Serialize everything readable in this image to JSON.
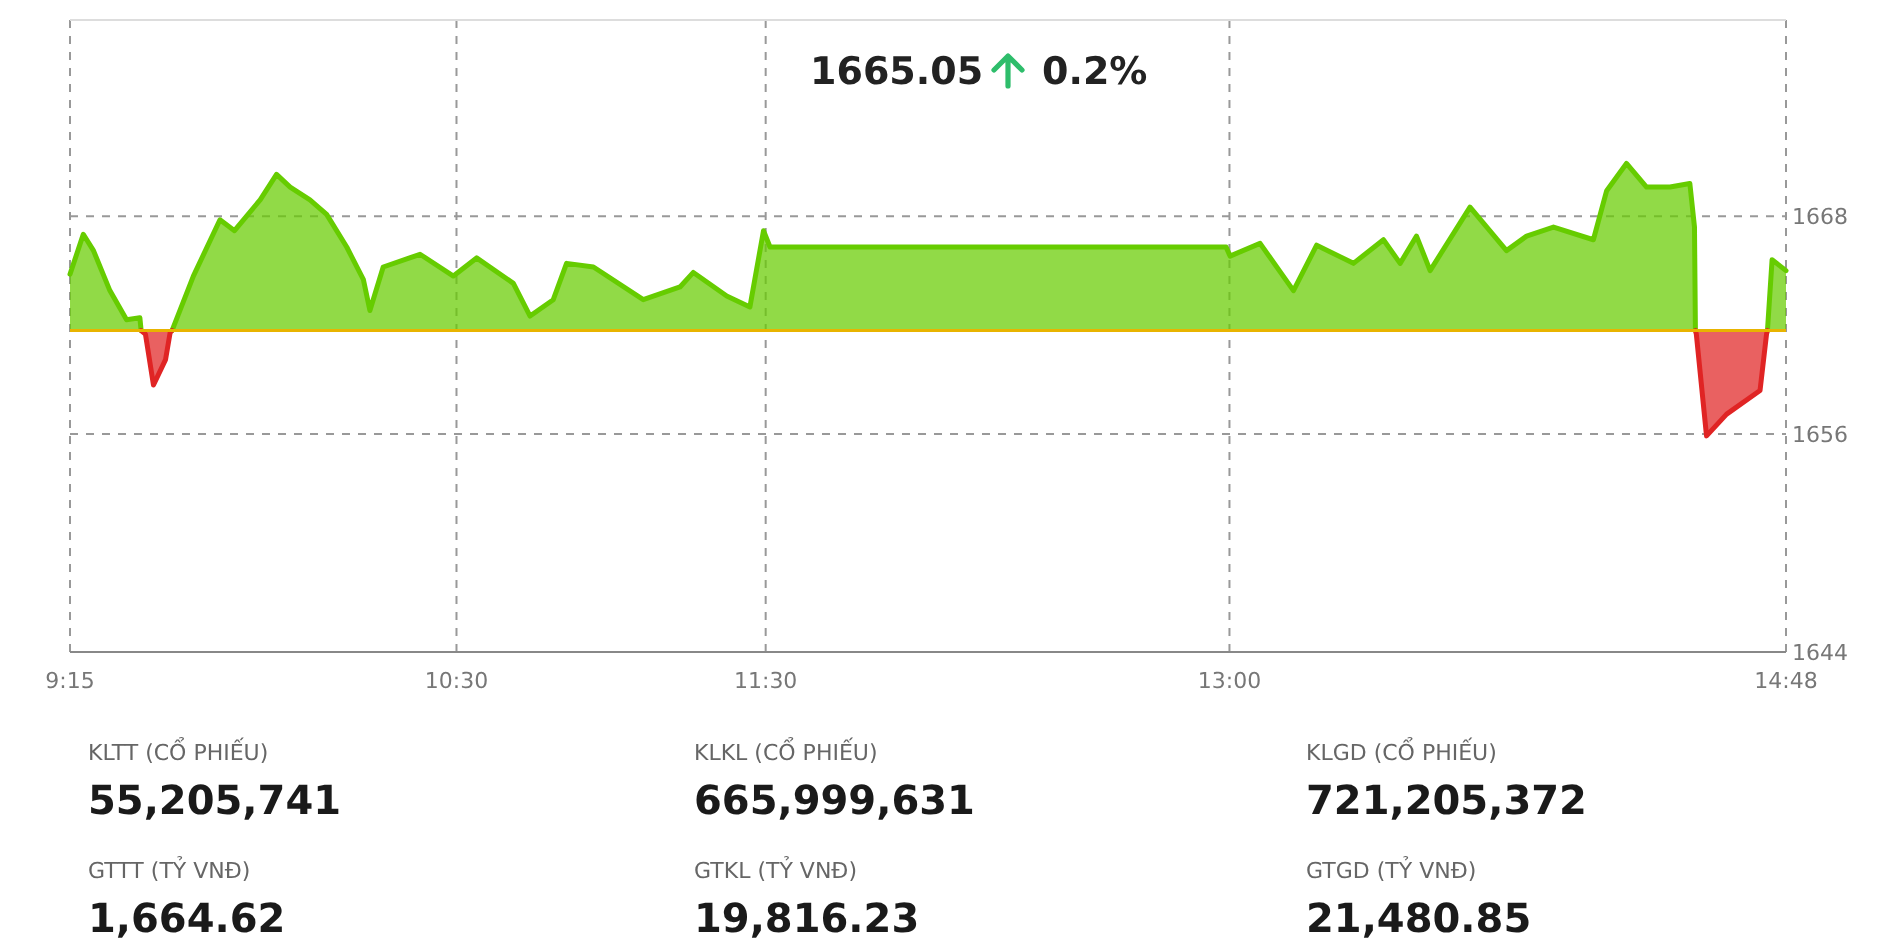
{
  "chart_data": {
    "type": "area",
    "xlim": [
      9.25,
      14.8
    ],
    "ylim": [
      1644,
      1678.8
    ],
    "xticks": [
      {
        "value": 9.25,
        "label": "9:15"
      },
      {
        "value": 10.5,
        "label": "10:30"
      },
      {
        "value": 11.5,
        "label": "11:30"
      },
      {
        "value": 13,
        "label": "13:00"
      },
      {
        "value": 14.8,
        "label": "14:48"
      }
    ],
    "yticks": [
      1644,
      1656,
      1668
    ],
    "grid": true,
    "ref_lines": [
      {
        "axis": "y",
        "value": 1661.7,
        "color": "#e8b400"
      }
    ],
    "series": [
      {
        "color": "#66cc00",
        "x": [
          9.25,
          9.293,
          9.326,
          9.379,
          9.433,
          9.476,
          9.48,
          9.5,
          9.58,
          9.649,
          9.735,
          9.782,
          9.865,
          9.918,
          9.962,
          10.026,
          10.08,
          10.145,
          10.199,
          10.22,
          10.263,
          10.382,
          10.49,
          10.565,
          10.684,
          10.738,
          10.813,
          10.856,
          10.943,
          11.104,
          11.223,
          11.266,
          11.374,
          11.449,
          11.493,
          11.514,
          12.989,
          13.002,
          13.099,
          13.207,
          13.282,
          13.401,
          13.498,
          13.552,
          13.605,
          13.649,
          13.778,
          13.896,
          13.961,
          14.048,
          14.177,
          14.22,
          14.284,
          14.349,
          14.425,
          14.489,
          14.504,
          14.507,
          14.6,
          14.74,
          14.755,
          14.8
        ],
        "values": [
          1664.8,
          1667.0,
          1666.1,
          1663.9,
          1662.3,
          1662.4,
          1661.7,
          null,
          1661.7,
          1664.7,
          1667.8,
          1667.2,
          1668.9,
          1670.3,
          1669.6,
          1668.9,
          1668.1,
          1666.3,
          1664.5,
          1662.8,
          1665.2,
          1665.9,
          1664.7,
          1665.7,
          1664.3,
          1662.5,
          1663.4,
          1665.4,
          1665.2,
          1663.4,
          1664.1,
          1664.9,
          1663.6,
          1663.0,
          1667.2,
          1666.3,
          1666.3,
          1665.8,
          1666.5,
          1663.9,
          1666.4,
          1665.4,
          1666.7,
          1665.4,
          1666.9,
          1665.0,
          1668.5,
          1666.1,
          1666.9,
          1667.4,
          1666.7,
          1669.4,
          1670.9,
          1669.6,
          1669.6,
          1669.8,
          1667.4,
          1661.7,
          null,
          1661.7,
          1665.6,
          1665.0
        ]
      },
      {
        "color": "#e02424",
        "x": [
          9.48,
          9.494,
          9.52,
          9.559,
          9.574,
          9.58
        ],
        "values": [
          1661.7,
          1661.5,
          1658.7,
          1660.1,
          1661.6,
          1661.7
        ]
      },
      {
        "color": "#e02424",
        "x": [
          14.507,
          14.51,
          14.543,
          14.608,
          14.716,
          14.737,
          14.74
        ],
        "values": [
          1661.7,
          1661.5,
          1655.9,
          1657.1,
          1658.4,
          1661.5,
          1661.7
        ]
      }
    ],
    "annotations": [
      "1665.05",
      "0.2%",
      "KLTT (CỔ PHIẾU)",
      "55,205,741",
      "KLKL (CỔ PHIẾU)",
      "665,999,631",
      "KLGD (CỔ PHIẾU)",
      "721,205,372",
      "GTTT (TỶ VNĐ)",
      "1,664.62",
      "GTKL (TỶ VNĐ)",
      "19,816.23",
      "GTGD (TỶ VNĐ)",
      "21,480.85"
    ]
  }
}
